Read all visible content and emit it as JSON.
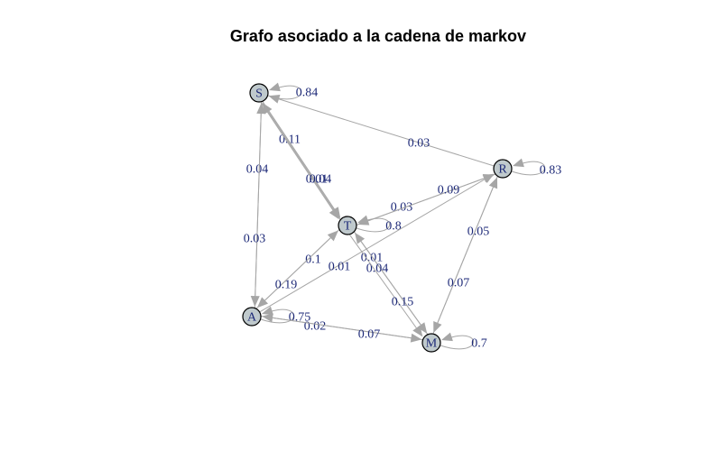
{
  "title": "Grafo asociado a la cadena de markov",
  "colors": {
    "edge": "#a6a6a6",
    "node_fill": "#bfc9cc",
    "label": "#1e2a78"
  },
  "nodes": [
    {
      "id": "S",
      "label": "S"
    },
    {
      "id": "R",
      "label": "R"
    },
    {
      "id": "T",
      "label": "T"
    },
    {
      "id": "A",
      "label": "A"
    },
    {
      "id": "M",
      "label": "M"
    }
  ],
  "edges": [
    {
      "from": "S",
      "to": "S",
      "label": "0.84"
    },
    {
      "from": "R",
      "to": "R",
      "label": "0.83"
    },
    {
      "from": "T",
      "to": "T",
      "label": "0.8"
    },
    {
      "from": "A",
      "to": "A",
      "label": "0.75"
    },
    {
      "from": "M",
      "to": "M",
      "label": "0.7"
    },
    {
      "from": "R",
      "to": "S",
      "label": "0.03"
    },
    {
      "from": "S",
      "to": "A",
      "label": "0.04"
    },
    {
      "from": "A",
      "to": "S",
      "label": "0.03"
    },
    {
      "from": "T",
      "to": "S",
      "label": "0.11"
    },
    {
      "from": "S",
      "to": "T",
      "label": "0.01"
    },
    {
      "from": "S",
      "to": "T",
      "label": "0.04"
    },
    {
      "from": "R",
      "to": "T",
      "label": "0.03"
    },
    {
      "from": "T",
      "to": "R",
      "label": "0.09"
    },
    {
      "from": "A",
      "to": "T",
      "label": "0.1"
    },
    {
      "from": "T",
      "to": "A",
      "label": "0.19"
    },
    {
      "from": "A",
      "to": "R",
      "label": "0.01"
    },
    {
      "from": "T",
      "to": "M",
      "label": "0.01"
    },
    {
      "from": "M",
      "to": "T",
      "label": "0.04"
    },
    {
      "from": "T",
      "to": "M",
      "label": "0.15"
    },
    {
      "from": "M",
      "to": "R",
      "label": "0.05"
    },
    {
      "from": "R",
      "to": "M",
      "label": "0.07"
    },
    {
      "from": "A",
      "to": "M",
      "label": "0.02"
    },
    {
      "from": "M",
      "to": "A",
      "label": "0.07"
    }
  ]
}
